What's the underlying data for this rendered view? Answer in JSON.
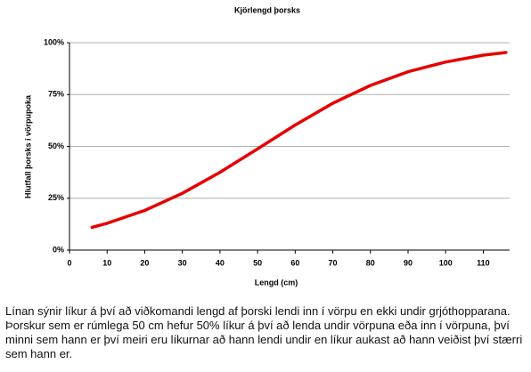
{
  "chart_data": {
    "type": "line",
    "title": "Kjörlengd þorsks",
    "x_label": "Lengd (cm)",
    "y_label": "Hlutfall þorsks í vörpupoka",
    "x": [
      6,
      10,
      20,
      30,
      40,
      50,
      60,
      70,
      80,
      90,
      100,
      110,
      116
    ],
    "values": [
      11,
      12.9,
      19.1,
      27.4,
      37.5,
      48.8,
      60.3,
      70.8,
      79.4,
      86,
      90.7,
      94,
      95.3
    ],
    "color": "#e60000",
    "xlim": [
      0,
      117
    ],
    "ylim": [
      0,
      100
    ],
    "xticks": [
      0,
      10,
      20,
      30,
      40,
      50,
      60,
      70,
      80,
      90,
      100,
      110
    ],
    "yticks": [
      {
        "value": 0,
        "label": "0%"
      },
      {
        "value": 25,
        "label": "25%"
      },
      {
        "value": 50,
        "label": "50%"
      },
      {
        "value": 75,
        "label": "75%"
      },
      {
        "value": 100,
        "label": "100%"
      }
    ],
    "grid": true
  },
  "caption": "Línan sýnir líkur á því að viðkomandi lengd af þorski lendi inn í vörpu en ekki undir grjóthopparana.  Þorskur sem er rúmlega 50 cm hefur 50% líkur á því að lenda undir vörpuna eða inn í vörpuna, því minni sem hann er því meiri eru líkurnar að hann lendi undir en líkur aukast að hann veiðist því stærri sem hann er."
}
